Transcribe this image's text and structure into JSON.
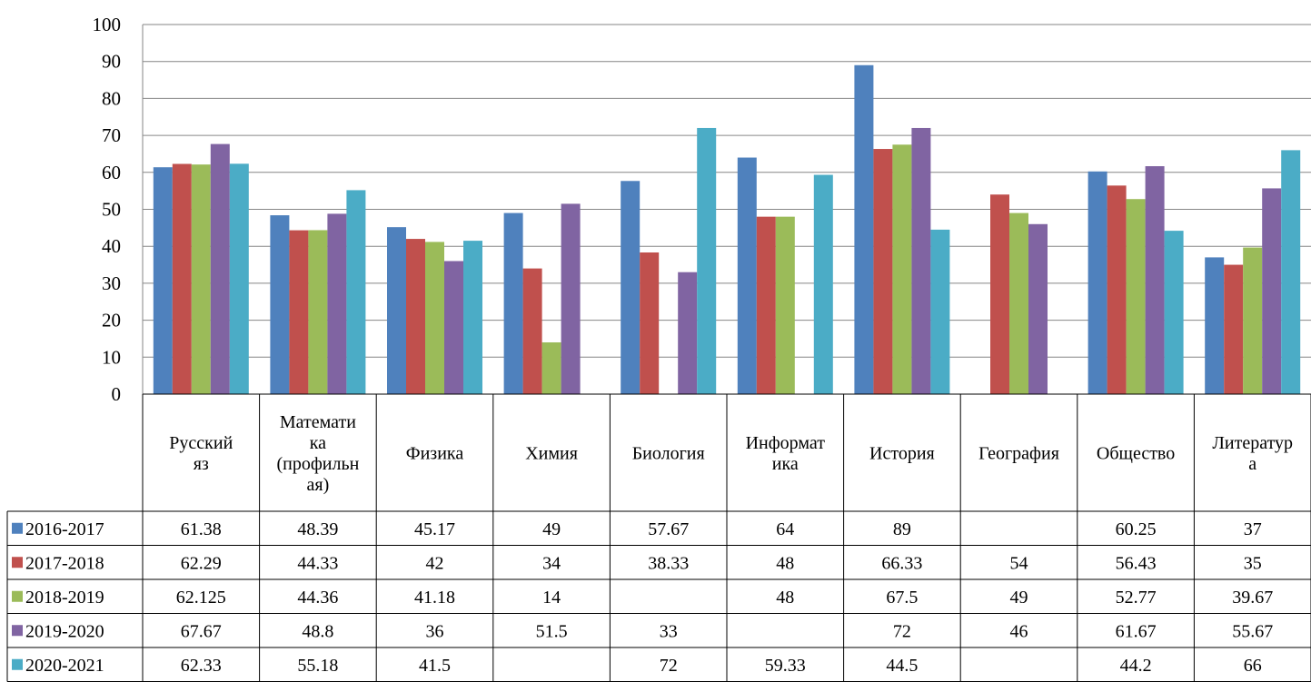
{
  "chart_data": {
    "type": "bar",
    "categories": [
      [
        "Русский",
        "яз"
      ],
      [
        "Математи",
        "ка",
        "(профильн",
        "ая)"
      ],
      [
        "Физика"
      ],
      [
        "Химия"
      ],
      [
        "Биология"
      ],
      [
        "Информат",
        "ика"
      ],
      [
        "История"
      ],
      [
        "География"
      ],
      [
        "Общество"
      ],
      [
        "Литератур",
        "а"
      ]
    ],
    "series": [
      {
        "name": "2016-2017",
        "color": "#4F81BD",
        "values": [
          61.38,
          48.39,
          45.17,
          49,
          57.67,
          64,
          89,
          null,
          60.25,
          37
        ]
      },
      {
        "name": "2017-2018",
        "color": "#C0504D",
        "values": [
          62.29,
          44.33,
          42,
          34,
          38.33,
          48,
          66.33,
          54,
          56.43,
          35
        ]
      },
      {
        "name": "2018-2019",
        "color": "#9BBB59",
        "values": [
          62.125,
          44.36,
          41.18,
          14,
          null,
          48,
          67.5,
          49,
          52.77,
          39.67
        ]
      },
      {
        "name": "2019-2020",
        "color": "#8064A2",
        "values": [
          67.67,
          48.8,
          36,
          51.5,
          33,
          null,
          72,
          46,
          61.67,
          55.67
        ]
      },
      {
        "name": "2020-2021",
        "color": "#4BACC6",
        "values": [
          62.33,
          55.18,
          41.5,
          null,
          72,
          59.33,
          44.5,
          null,
          44.2,
          66
        ]
      }
    ],
    "ylim": [
      0,
      100
    ],
    "yticks": [
      0,
      10,
      20,
      30,
      40,
      50,
      60,
      70,
      80,
      90,
      100
    ],
    "grid": true,
    "legend": "data-table-left",
    "title": "",
    "xlabel": "",
    "ylabel": ""
  }
}
